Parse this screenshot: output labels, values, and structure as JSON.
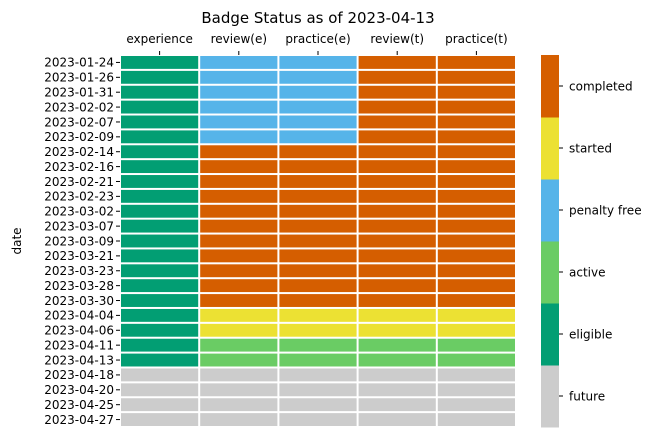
{
  "chart_data": {
    "type": "heatmap",
    "title": "Badge Status as of 2023-04-13",
    "ylabel": "date",
    "xlabel": "",
    "columns": [
      "experience",
      "review(e)",
      "practice(e)",
      "review(t)",
      "practice(t)"
    ],
    "rows": [
      "2023-01-24",
      "2023-01-26",
      "2023-01-31",
      "2023-02-02",
      "2023-02-07",
      "2023-02-09",
      "2023-02-14",
      "2023-02-16",
      "2023-02-21",
      "2023-02-23",
      "2023-03-02",
      "2023-03-07",
      "2023-03-09",
      "2023-03-21",
      "2023-03-23",
      "2023-03-28",
      "2023-03-30",
      "2023-04-04",
      "2023-04-06",
      "2023-04-11",
      "2023-04-13",
      "2023-04-18",
      "2023-04-20",
      "2023-04-25",
      "2023-04-27"
    ],
    "status_levels": [
      "future",
      "eligible",
      "active",
      "penalty free",
      "started",
      "completed"
    ],
    "colors": {
      "future": "#cccccc",
      "eligible": "#029e73",
      "active": "#6acc64",
      "penalty free": "#56b4e9",
      "started": "#ece133",
      "completed": "#d55e00"
    },
    "values": [
      [
        1,
        3,
        3,
        5,
        5
      ],
      [
        1,
        3,
        3,
        5,
        5
      ],
      [
        1,
        3,
        3,
        5,
        5
      ],
      [
        1,
        3,
        3,
        5,
        5
      ],
      [
        1,
        3,
        3,
        5,
        5
      ],
      [
        1,
        3,
        3,
        5,
        5
      ],
      [
        1,
        5,
        5,
        5,
        5
      ],
      [
        1,
        5,
        5,
        5,
        5
      ],
      [
        1,
        5,
        5,
        5,
        5
      ],
      [
        1,
        5,
        5,
        5,
        5
      ],
      [
        1,
        5,
        5,
        5,
        5
      ],
      [
        1,
        5,
        5,
        5,
        5
      ],
      [
        1,
        5,
        5,
        5,
        5
      ],
      [
        1,
        5,
        5,
        5,
        5
      ],
      [
        1,
        5,
        5,
        5,
        5
      ],
      [
        1,
        5,
        5,
        5,
        5
      ],
      [
        1,
        5,
        5,
        5,
        5
      ],
      [
        1,
        4,
        4,
        4,
        4
      ],
      [
        1,
        4,
        4,
        4,
        4
      ],
      [
        1,
        2,
        2,
        2,
        2
      ],
      [
        1,
        2,
        2,
        2,
        2
      ],
      [
        0,
        0,
        0,
        0,
        0
      ],
      [
        0,
        0,
        0,
        0,
        0
      ],
      [
        0,
        0,
        0,
        0,
        0
      ],
      [
        0,
        0,
        0,
        0,
        0
      ]
    ],
    "grid": false,
    "legend": "colorbar-right"
  }
}
